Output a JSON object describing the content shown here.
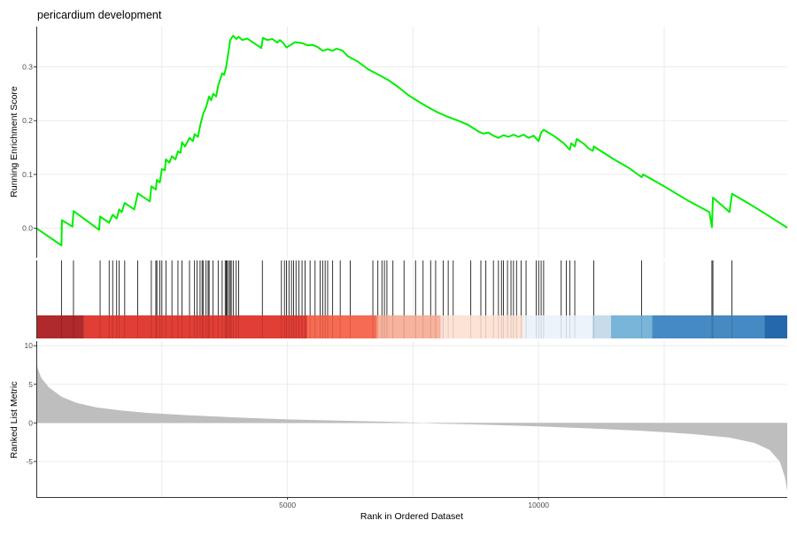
{
  "chart_data": {
    "type": "line",
    "title": "pericardium development",
    "xlabel": "Rank in Ordered Dataset",
    "xlim": [
      0,
      14950
    ],
    "xticks": [
      5000,
      10000
    ],
    "grid": true,
    "colors": {
      "es_line": "#00ee00",
      "metric_fill": "#bebebe",
      "hit_line": "#000000",
      "axis": "#333333",
      "grid": "#ebebeb"
    },
    "enrichment": {
      "ylabel": "Running Enrichment Score",
      "ylim": [
        -0.055,
        0.375
      ],
      "yticks": [
        0.0,
        0.1,
        0.2,
        0.3
      ],
      "points": [
        [
          0,
          0.0
        ],
        [
          500,
          -0.032
        ],
        [
          510,
          0.015
        ],
        [
          720,
          0.003
        ],
        [
          740,
          0.032
        ],
        [
          1250,
          -0.003
        ],
        [
          1270,
          0.022
        ],
        [
          1450,
          0.01
        ],
        [
          1520,
          0.025
        ],
        [
          1600,
          0.018
        ],
        [
          1650,
          0.035
        ],
        [
          1700,
          0.03
        ],
        [
          1760,
          0.047
        ],
        [
          1950,
          0.035
        ],
        [
          2020,
          0.065
        ],
        [
          2260,
          0.05
        ],
        [
          2290,
          0.078
        ],
        [
          2380,
          0.072
        ],
        [
          2400,
          0.09
        ],
        [
          2460,
          0.085
        ],
        [
          2500,
          0.11
        ],
        [
          2560,
          0.108
        ],
        [
          2580,
          0.128
        ],
        [
          2650,
          0.122
        ],
        [
          2700,
          0.134
        ],
        [
          2770,
          0.128
        ],
        [
          2820,
          0.143
        ],
        [
          2870,
          0.14
        ],
        [
          2900,
          0.16
        ],
        [
          2960,
          0.152
        ],
        [
          3050,
          0.168
        ],
        [
          3120,
          0.162
        ],
        [
          3150,
          0.175
        ],
        [
          3220,
          0.17
        ],
        [
          3260,
          0.19
        ],
        [
          3320,
          0.212
        ],
        [
          3380,
          0.225
        ],
        [
          3440,
          0.245
        ],
        [
          3480,
          0.238
        ],
        [
          3520,
          0.25
        ],
        [
          3580,
          0.245
        ],
        [
          3620,
          0.265
        ],
        [
          3700,
          0.288
        ],
        [
          3740,
          0.285
        ],
        [
          3780,
          0.3
        ],
        [
          3830,
          0.33
        ],
        [
          3860,
          0.35
        ],
        [
          3920,
          0.358
        ],
        [
          3980,
          0.352
        ],
        [
          4030,
          0.356
        ],
        [
          4100,
          0.35
        ],
        [
          4200,
          0.353
        ],
        [
          4480,
          0.335
        ],
        [
          4510,
          0.354
        ],
        [
          4600,
          0.35
        ],
        [
          4700,
          0.352
        ],
        [
          4800,
          0.345
        ],
        [
          4850,
          0.35
        ],
        [
          4920,
          0.344
        ],
        [
          4980,
          0.336
        ],
        [
          5050,
          0.34
        ],
        [
          5150,
          0.346
        ],
        [
          5300,
          0.344
        ],
        [
          5400,
          0.34
        ],
        [
          5500,
          0.341
        ],
        [
          5600,
          0.337
        ],
        [
          5700,
          0.33
        ],
        [
          5800,
          0.333
        ],
        [
          5900,
          0.33
        ],
        [
          5980,
          0.334
        ],
        [
          6100,
          0.33
        ],
        [
          6200,
          0.32
        ],
        [
          6400,
          0.31
        ],
        [
          6600,
          0.296
        ],
        [
          6800,
          0.286
        ],
        [
          7000,
          0.276
        ],
        [
          7200,
          0.263
        ],
        [
          7400,
          0.248
        ],
        [
          7600,
          0.236
        ],
        [
          7800,
          0.225
        ],
        [
          8000,
          0.215
        ],
        [
          8200,
          0.207
        ],
        [
          8400,
          0.2
        ],
        [
          8600,
          0.192
        ],
        [
          8800,
          0.18
        ],
        [
          8900,
          0.176
        ],
        [
          9000,
          0.178
        ],
        [
          9100,
          0.172
        ],
        [
          9200,
          0.168
        ],
        [
          9300,
          0.173
        ],
        [
          9400,
          0.17
        ],
        [
          9500,
          0.174
        ],
        [
          9600,
          0.17
        ],
        [
          9700,
          0.174
        ],
        [
          9800,
          0.168
        ],
        [
          9900,
          0.172
        ],
        [
          10000,
          0.162
        ],
        [
          10050,
          0.178
        ],
        [
          10100,
          0.183
        ],
        [
          10300,
          0.172
        ],
        [
          10500,
          0.158
        ],
        [
          10620,
          0.146
        ],
        [
          10650,
          0.158
        ],
        [
          10720,
          0.152
        ],
        [
          10760,
          0.166
        ],
        [
          10900,
          0.157
        ],
        [
          11000,
          0.148
        ],
        [
          11080,
          0.144
        ],
        [
          11100,
          0.152
        ],
        [
          11500,
          0.128
        ],
        [
          11800,
          0.112
        ],
        [
          12050,
          0.095
        ],
        [
          12080,
          0.1
        ],
        [
          12500,
          0.078
        ],
        [
          13000,
          0.05
        ],
        [
          13400,
          0.03
        ],
        [
          13450,
          0.002
        ],
        [
          13470,
          0.057
        ],
        [
          13800,
          0.03
        ],
        [
          13850,
          0.064
        ],
        [
          14200,
          0.045
        ],
        [
          14600,
          0.022
        ],
        [
          14950,
          0.001
        ]
      ]
    },
    "hits": [
      500,
      740,
      1270,
      1450,
      1520,
      1600,
      1650,
      1760,
      2020,
      2290,
      2380,
      2400,
      2460,
      2500,
      2580,
      2700,
      2820,
      2900,
      3050,
      3150,
      3200,
      3260,
      3300,
      3320,
      3380,
      3420,
      3440,
      3520,
      3620,
      3700,
      3760,
      3780,
      3800,
      3830,
      3860,
      3880,
      3920,
      3980,
      4030,
      4500,
      4880,
      4940,
      4980,
      5030,
      5080,
      5120,
      5170,
      5230,
      5290,
      5350,
      5450,
      5550,
      5650,
      5700,
      5750,
      5800,
      5900,
      6050,
      6250,
      6700,
      6800,
      6880,
      6930,
      6980,
      7100,
      7320,
      7550,
      7700,
      7850,
      7950,
      8100,
      8200,
      8300,
      8650,
      8850,
      8950,
      9100,
      9200,
      9260,
      9300,
      9380,
      9450,
      9500,
      9560,
      9650,
      9750,
      9950,
      10000,
      10050,
      10100,
      10450,
      10550,
      10620,
      10720,
      11100,
      12050,
      13450,
      13470,
      13850
    ],
    "heatmap_bands": [
      {
        "from": 0,
        "to": 950,
        "color": "#ad2224"
      },
      {
        "from": 950,
        "to": 5400,
        "color": "#e0392f"
      },
      {
        "from": 5400,
        "to": 6780,
        "color": "#f6664d"
      },
      {
        "from": 6780,
        "to": 8050,
        "color": "#f8b19a"
      },
      {
        "from": 8050,
        "to": 9700,
        "color": "#fde2d5"
      },
      {
        "from": 9700,
        "to": 11070,
        "color": "#ebf3fb"
      },
      {
        "from": 11070,
        "to": 11440,
        "color": "#c5dbea"
      },
      {
        "from": 11440,
        "to": 12260,
        "color": "#75b3d8"
      },
      {
        "from": 12260,
        "to": 14500,
        "color": "#3f86c1"
      },
      {
        "from": 14500,
        "to": 14950,
        "color": "#1e63a9"
      }
    ],
    "metric": {
      "ylabel": "Ranked List Metric",
      "ylim": [
        -9.6,
        10.6
      ],
      "yticks": [
        -5,
        0,
        5,
        10
      ],
      "tick_labels": [
        "-5",
        "0",
        "5",
        "10"
      ],
      "points": [
        [
          0,
          8.0
        ],
        [
          30,
          7.0
        ],
        [
          100,
          5.8
        ],
        [
          250,
          4.6
        ],
        [
          500,
          3.4
        ],
        [
          800,
          2.6
        ],
        [
          1200,
          2.0
        ],
        [
          1700,
          1.6
        ],
        [
          2200,
          1.3
        ],
        [
          3000,
          1.0
        ],
        [
          4000,
          0.7
        ],
        [
          5000,
          0.45
        ],
        [
          6000,
          0.3
        ],
        [
          7000,
          0.15
        ],
        [
          7500,
          0.05
        ],
        [
          7700,
          0.0
        ],
        [
          8000,
          -0.08
        ],
        [
          9000,
          -0.25
        ],
        [
          10000,
          -0.45
        ],
        [
          11000,
          -0.7
        ],
        [
          12000,
          -1.0
        ],
        [
          13000,
          -1.4
        ],
        [
          13800,
          -1.9
        ],
        [
          14300,
          -2.6
        ],
        [
          14600,
          -3.5
        ],
        [
          14800,
          -5.0
        ],
        [
          14900,
          -7.0
        ],
        [
          14950,
          -8.8
        ]
      ]
    }
  }
}
